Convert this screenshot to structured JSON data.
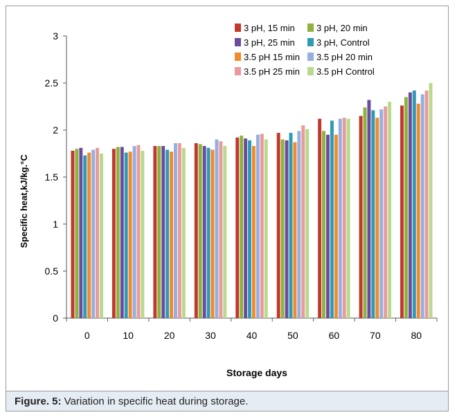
{
  "caption": {
    "label": "Figure. 5:",
    "text": " Variation in specific heat during storage."
  },
  "chart_data": {
    "type": "bar",
    "title": "",
    "xlabel": "Storage days",
    "ylabel": "Specific heat,kJ/kg.°C",
    "ylim": [
      0,
      3
    ],
    "yticks": [
      "0",
      "0.5",
      "1",
      "1.5",
      "2",
      "2.5",
      "3"
    ],
    "grid": false,
    "legend_position": "top-right",
    "categories": [
      "0",
      "10",
      "20",
      "30",
      "40",
      "50",
      "60",
      "70",
      "80"
    ],
    "series": [
      {
        "name": "3 pH, 15 min",
        "color": "#c0392b",
        "values": [
          1.78,
          1.8,
          1.83,
          1.86,
          1.92,
          1.97,
          2.12,
          2.15,
          2.26
        ]
      },
      {
        "name": "3 pH, 20 min",
        "color": "#8fb13d",
        "values": [
          1.8,
          1.82,
          1.83,
          1.85,
          1.94,
          1.9,
          1.99,
          2.24,
          2.35
        ]
      },
      {
        "name": "3 pH, 25 min",
        "color": "#6a4c9c",
        "values": [
          1.81,
          1.82,
          1.83,
          1.83,
          1.91,
          1.89,
          1.95,
          2.32,
          2.4
        ]
      },
      {
        "name": "3 pH, Control",
        "color": "#2e9ab3",
        "values": [
          1.73,
          1.76,
          1.79,
          1.81,
          1.89,
          1.97,
          2.1,
          2.21,
          2.42
        ]
      },
      {
        "name": "3.5 pH 15 min",
        "color": "#f08a2c",
        "values": [
          1.76,
          1.77,
          1.77,
          1.79,
          1.83,
          1.87,
          1.95,
          2.13,
          2.28
        ]
      },
      {
        "name": "3.5 pH 20 min",
        "color": "#97aee0",
        "values": [
          1.79,
          1.83,
          1.86,
          1.9,
          1.95,
          1.99,
          2.12,
          2.22,
          2.38
        ]
      },
      {
        "name": "3.5 pH 25 min",
        "color": "#e79b9b",
        "values": [
          1.81,
          1.84,
          1.86,
          1.88,
          1.96,
          2.05,
          2.13,
          2.25,
          2.42
        ]
      },
      {
        "name": "3.5 pH Control",
        "color": "#b9d98c",
        "values": [
          1.75,
          1.78,
          1.81,
          1.83,
          1.9,
          2.01,
          2.12,
          2.3,
          2.5
        ]
      }
    ]
  }
}
